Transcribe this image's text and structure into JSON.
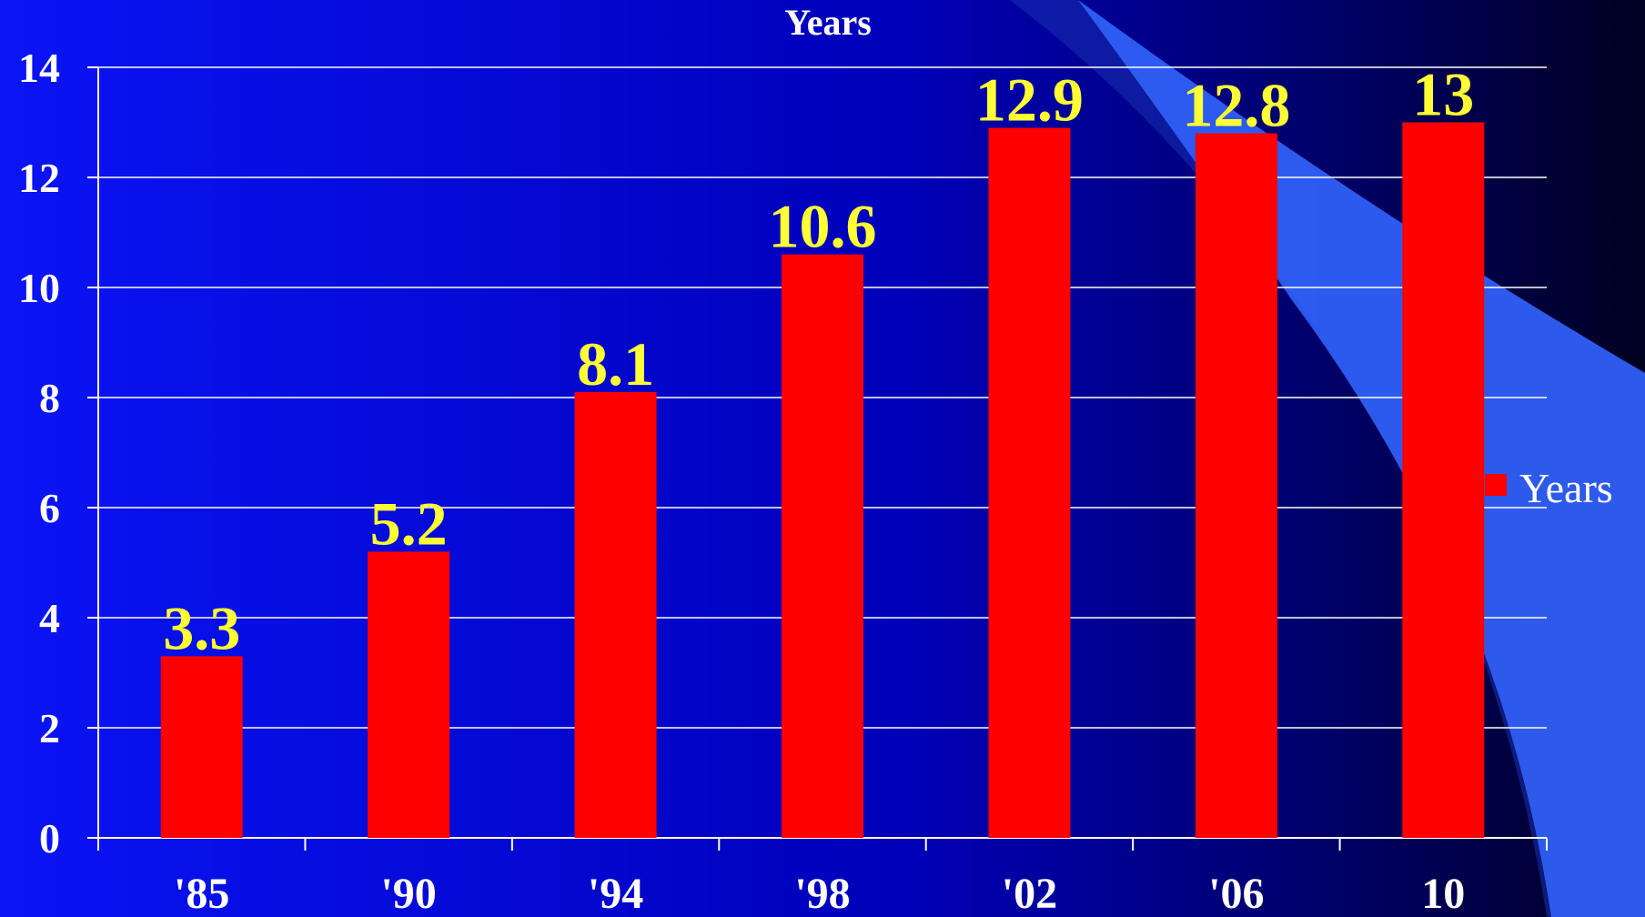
{
  "colors": {
    "bar": "#FF0000",
    "data_label": "#FFFF33",
    "text": "#FFFFFF",
    "gridline": "#FFFFFF",
    "background_left": "#0A14F5",
    "background_right": "#000020",
    "swoosh": "#3366FF"
  },
  "chart_data": {
    "type": "bar",
    "title": "Years",
    "categories": [
      "'85",
      "'90",
      "'94",
      "'98",
      "'02",
      "'06",
      "10"
    ],
    "series": [
      {
        "name": "Years",
        "values": [
          3.3,
          5.2,
          8.1,
          10.6,
          12.9,
          12.8,
          13
        ]
      }
    ],
    "data_labels": [
      "3.3",
      "5.2",
      "8.1",
      "10.6",
      "12.9",
      "12.8",
      "13"
    ],
    "ylim": [
      0,
      14
    ],
    "yticks": [
      "0",
      "2",
      "4",
      "6",
      "8",
      "10",
      "12",
      "14"
    ],
    "xlabel": "",
    "ylabel": "",
    "grid": true,
    "legend_position": "right"
  }
}
